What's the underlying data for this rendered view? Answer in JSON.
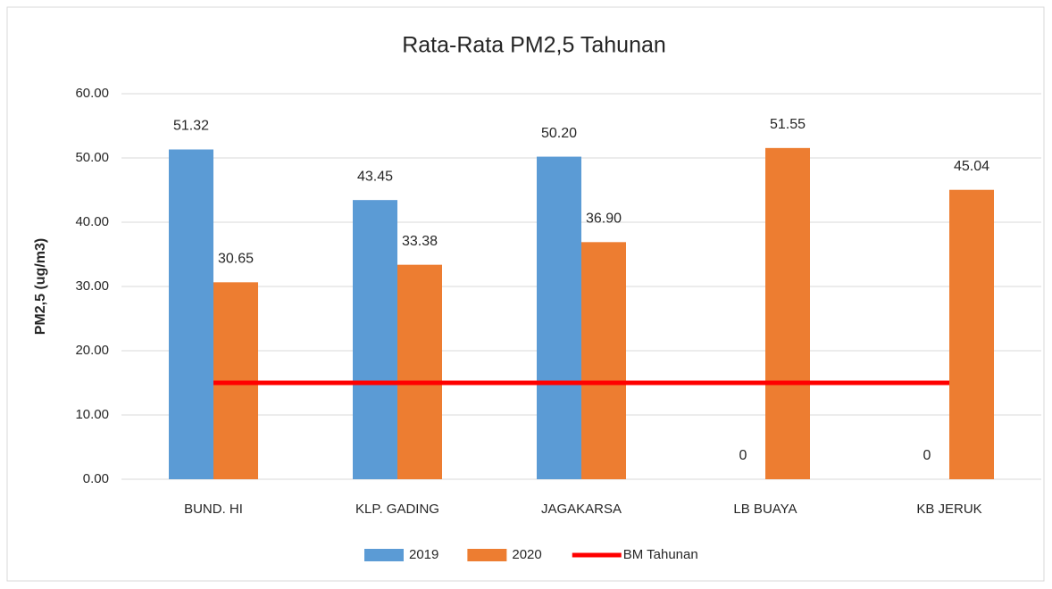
{
  "chart_data": {
    "type": "bar",
    "title": "Rata-Rata PM2,5 Tahunan",
    "y_label": "PM2,5 (ug/m3)",
    "categories": [
      "BUND. HI",
      "KLP. GADING",
      "JAGAKARSA",
      "LB BUAYA",
      "KB JERUK"
    ],
    "series": [
      {
        "name": "2019",
        "color": "#5b9bd5",
        "values": [
          51.32,
          43.45,
          50.2,
          0,
          0
        ],
        "value_labels": [
          "51.32",
          "43.45",
          "50.20",
          "0",
          "0"
        ]
      },
      {
        "name": "2020",
        "color": "#ed7d31",
        "values": [
          30.65,
          33.38,
          36.9,
          51.55,
          45.04
        ],
        "value_labels": [
          "30.65",
          "33.38",
          "36.90",
          "51.55",
          "45.04"
        ]
      },
      {
        "name": "BM Tahunan",
        "color": "#ff0000",
        "type": "line",
        "values": [
          15,
          15,
          15,
          15,
          15
        ]
      }
    ],
    "ylim": [
      0,
      60
    ],
    "yticks": [
      {
        "value": 0,
        "label": "0.00"
      },
      {
        "value": 10,
        "label": "10.00"
      },
      {
        "value": 20,
        "label": "20.00"
      },
      {
        "value": 30,
        "label": "30.00"
      },
      {
        "value": 40,
        "label": "40.00"
      },
      {
        "value": 50,
        "label": "50.00"
      },
      {
        "value": 60,
        "label": "60.00"
      }
    ],
    "grid": true,
    "legend": "bottom"
  }
}
